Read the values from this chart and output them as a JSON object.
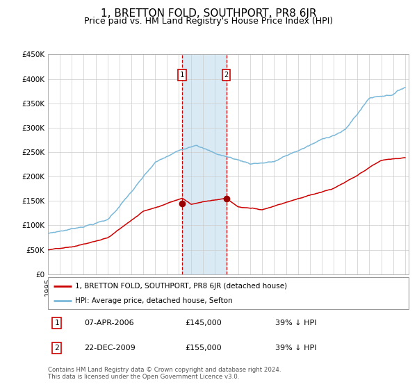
{
  "title": "1, BRETTON FOLD, SOUTHPORT, PR8 6JR",
  "subtitle": "Price paid vs. HM Land Registry's House Price Index (HPI)",
  "ylim": [
    0,
    450000
  ],
  "yticks": [
    0,
    50000,
    100000,
    150000,
    200000,
    250000,
    300000,
    350000,
    400000,
    450000
  ],
  "ytick_labels": [
    "£0",
    "£50K",
    "£100K",
    "£150K",
    "£200K",
    "£250K",
    "£300K",
    "£350K",
    "£400K",
    "£450K"
  ],
  "xlim": [
    1995,
    2025.3
  ],
  "hpi_color": "#7ab8d9",
  "price_color": "#cc0000",
  "dot_color": "#990000",
  "shade_color": "#daeaf5",
  "dashed_color": "#cc0000",
  "event1_year": 2006.27,
  "event1_price": 145000,
  "event1_label": "1",
  "event1_date": "07-APR-2006",
  "event1_pct": "39% ↓ HPI",
  "event2_year": 2009.98,
  "event2_price": 155000,
  "event2_label": "2",
  "event2_date": "22-DEC-2009",
  "event2_pct": "39% ↓ HPI",
  "legend_line1": "1, BRETTON FOLD, SOUTHPORT, PR8 6JR (detached house)",
  "legend_line2": "HPI: Average price, detached house, Sefton",
  "footer": "Contains HM Land Registry data © Crown copyright and database right 2024.\nThis data is licensed under the Open Government Licence v3.0.",
  "background_color": "#ffffff",
  "grid_color": "#cccccc",
  "title_fontsize": 11,
  "subtitle_fontsize": 9,
  "tick_fontsize": 7.5
}
